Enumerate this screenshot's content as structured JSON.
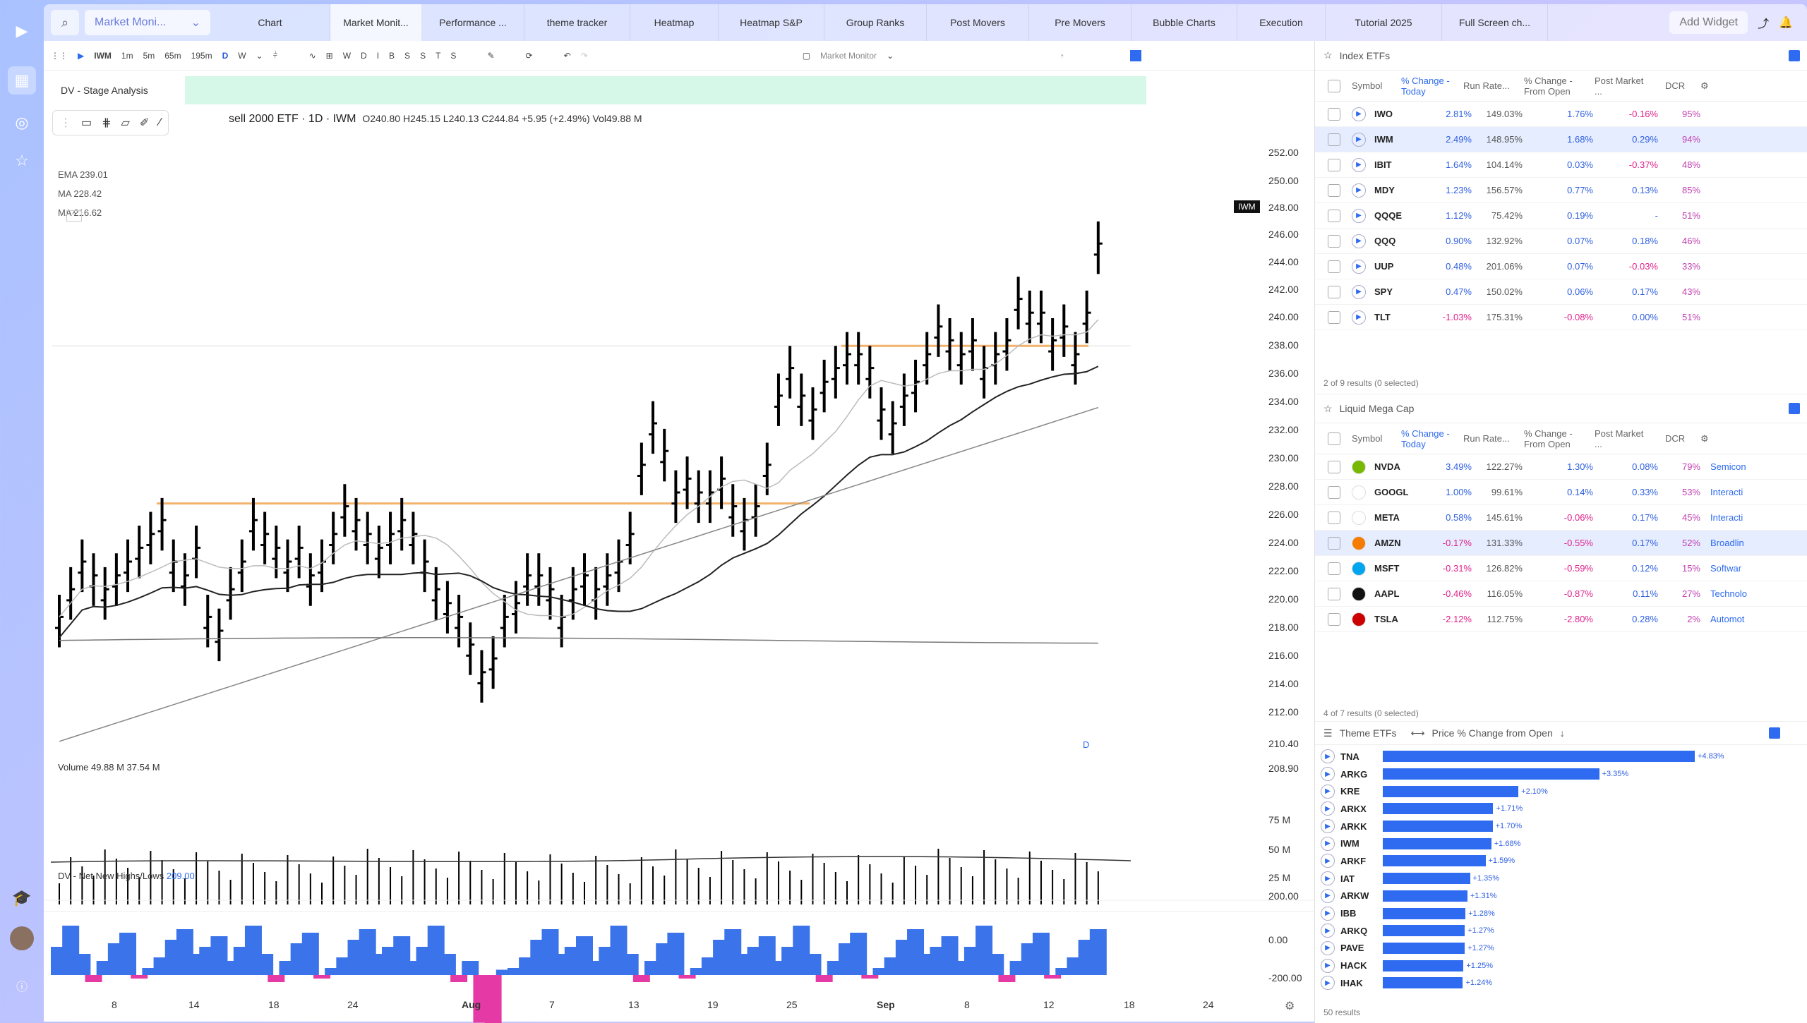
{
  "sidebar": {
    "icons": [
      "logo-icon",
      "layout-icon",
      "alert-icon",
      "star-icon",
      "graduation-icon",
      "avatar",
      "help-icon"
    ]
  },
  "topbar": {
    "selector": "Market Moni...",
    "tabs": [
      "Chart",
      "Market Monit...",
      "Performance ...",
      "theme tracker",
      "Heatmap",
      "Heatmap S&P",
      "Group Ranks",
      "Post Movers",
      "Pre Movers",
      "Bubble Charts",
      "Execution",
      "Tutorial 2025",
      "Full Screen ch..."
    ],
    "add_widget": "Add Widget"
  },
  "toolbar": {
    "symbol": "IWM",
    "intervals": [
      "1m",
      "5m",
      "65m",
      "195m",
      "D",
      "W"
    ],
    "letters": [
      "W",
      "D",
      "I",
      "B",
      "S",
      "S",
      "T",
      "S"
    ],
    "layout": "Market Monitor"
  },
  "chart": {
    "stage": "DV - Stage Analysis",
    "title": "sell 2000 ETF · 1D · IWM",
    "ohlc": "O240.80  H245.15  L240.13  C244.84  +5.95 (+2.49%)  Vol49.88 M",
    "ema1": "EMA  239.01",
    "ma1": "MA  228.42",
    "ma2": "MA  216.62",
    "tag": "IWM",
    "dlabel": "D",
    "volume": "Volume  49.88 M  37.54 M",
    "nnh": "DV - Net New Highs/Lows",
    "nnh_val": "209.00"
  },
  "chart_data": {
    "type": "bar",
    "yticks": [
      "252.00",
      "250.00",
      "248.00",
      "246.00",
      "244.00",
      "242.00",
      "240.00",
      "238.00",
      "236.00",
      "234.00",
      "232.00",
      "230.00",
      "228.00",
      "226.00",
      "224.00",
      "222.00",
      "220.00",
      "218.00",
      "216.00",
      "214.00",
      "212.00",
      "210.40",
      "208.90"
    ],
    "xticks": [
      "8",
      "14",
      "18",
      "24",
      "Aug",
      "7",
      "13",
      "19",
      "25",
      "Sep",
      "8",
      "12",
      "18",
      "24"
    ],
    "vol_ticks": [
      "75 M",
      "50 M",
      "25 M"
    ],
    "nnh_ticks": [
      "200.00",
      "0.00",
      "-200.00"
    ]
  },
  "index_etfs": {
    "title": "Index ETFs",
    "cols": [
      "Symbol",
      "% Change - Today",
      "Run Rate...",
      "% Change - From Open",
      "Post Market ...",
      "DCR"
    ],
    "rows": [
      [
        "IWO",
        "2.81%",
        "149.03%",
        "1.76%",
        "-0.16%",
        "95%"
      ],
      [
        "IWM",
        "2.49%",
        "148.95%",
        "1.68%",
        "0.29%",
        "94%"
      ],
      [
        "IBIT",
        "1.64%",
        "104.14%",
        "0.03%",
        "-0.37%",
        "48%"
      ],
      [
        "MDY",
        "1.23%",
        "156.57%",
        "0.77%",
        "0.13%",
        "85%"
      ],
      [
        "QQQE",
        "1.12%",
        "75.42%",
        "0.19%",
        "-",
        "51%"
      ],
      [
        "QQQ",
        "0.90%",
        "132.92%",
        "0.07%",
        "0.18%",
        "46%"
      ],
      [
        "UUP",
        "0.48%",
        "201.06%",
        "0.07%",
        "-0.03%",
        "33%"
      ],
      [
        "SPY",
        "0.47%",
        "150.02%",
        "0.06%",
        "0.17%",
        "43%"
      ],
      [
        "TLT",
        "-1.03%",
        "175.31%",
        "-0.08%",
        "0.00%",
        "51%"
      ]
    ],
    "foot": "2 of 9 results (0 selected)"
  },
  "mega": {
    "title": "Liquid Mega Cap",
    "rows": [
      [
        "NVDA",
        "3.49%",
        "122.27%",
        "1.30%",
        "0.08%",
        "79%",
        "Semicon"
      ],
      [
        "GOOGL",
        "1.00%",
        "99.61%",
        "0.14%",
        "0.33%",
        "53%",
        "Interacti"
      ],
      [
        "META",
        "0.58%",
        "145.61%",
        "-0.06%",
        "0.17%",
        "45%",
        "Interacti"
      ],
      [
        "AMZN",
        "-0.17%",
        "131.33%",
        "-0.55%",
        "0.17%",
        "52%",
        "Broadlin"
      ],
      [
        "MSFT",
        "-0.31%",
        "126.82%",
        "-0.59%",
        "0.12%",
        "15%",
        "Softwar"
      ],
      [
        "AAPL",
        "-0.46%",
        "116.05%",
        "-0.87%",
        "0.11%",
        "27%",
        "Technolo"
      ],
      [
        "TSLA",
        "-2.12%",
        "112.75%",
        "-2.80%",
        "0.28%",
        "2%",
        "Automot"
      ]
    ],
    "foot": "4 of 7 results (0 selected)"
  },
  "theme": {
    "title": "Theme ETFs",
    "sub": "Price % Change from Open",
    "rows": [
      [
        "TNA",
        4.83
      ],
      [
        "ARKG",
        3.35
      ],
      [
        "KRE",
        2.1
      ],
      [
        "ARKX",
        1.71
      ],
      [
        "ARKK",
        1.7
      ],
      [
        "IWM",
        1.68
      ],
      [
        "ARKF",
        1.59
      ],
      [
        "IAT",
        1.35
      ],
      [
        "ARKW",
        1.31
      ],
      [
        "IBB",
        1.28
      ],
      [
        "ARKQ",
        1.27
      ],
      [
        "PAVE",
        1.27
      ],
      [
        "HACK",
        1.25
      ],
      [
        "IHAK",
        1.24
      ]
    ],
    "labels": [
      "+4.83%",
      "+3.35%",
      "+2.10%",
      "+1.71%",
      "+1.70%",
      "+1.68%",
      "+1.59%",
      "+1.35%",
      "+1.31%",
      "+1.28%",
      "+1.27%",
      "+1.27%",
      "+1.25%",
      "+1.24%"
    ],
    "foot": "50 results"
  }
}
